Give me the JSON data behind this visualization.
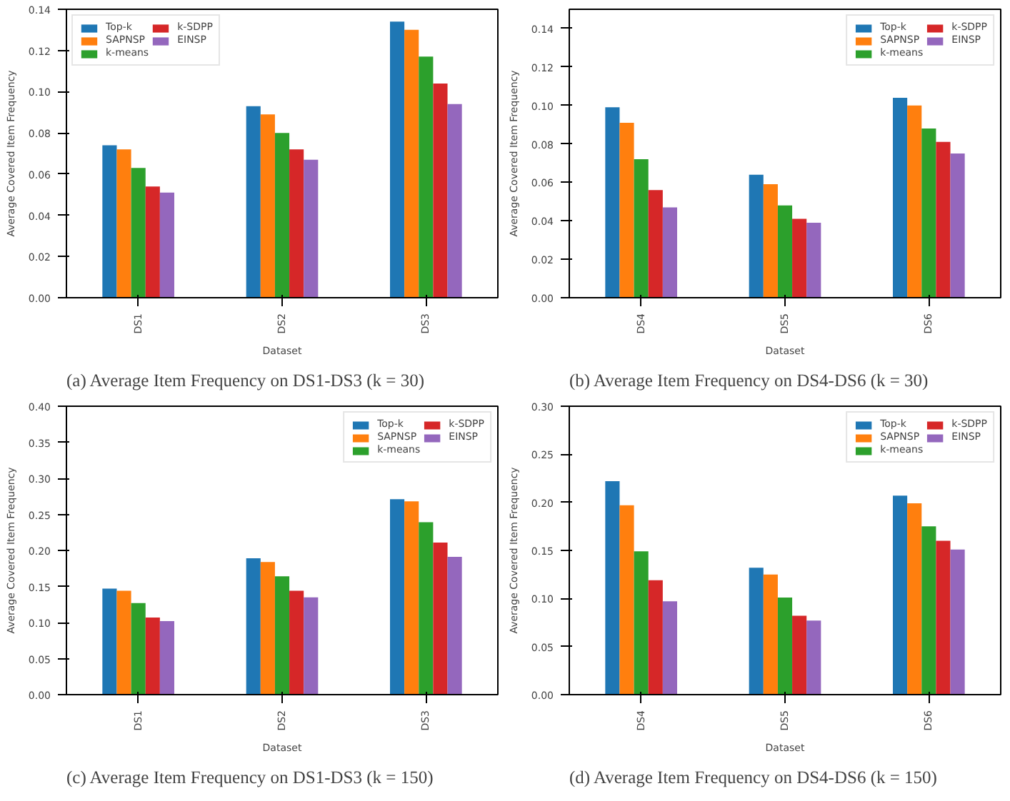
{
  "chart_data": [
    {
      "type": "bar",
      "title": "(a) Average Item Frequency on DS1-DS3 (k = 30)",
      "xlabel": "Dataset",
      "ylabel": "Average Covered Item Frequency",
      "categories": [
        "DS1",
        "DS2",
        "DS3"
      ],
      "ylim": [
        0,
        0.14
      ],
      "yticks": [
        {
          "value": 0,
          "label": "0.00"
        },
        {
          "value": 0.02,
          "label": "0.02"
        },
        {
          "value": 0.04,
          "label": "0.04"
        },
        {
          "value": 0.06,
          "label": "0.06"
        },
        {
          "value": 0.08,
          "label": "0.08"
        },
        {
          "value": 0.1,
          "label": "0.10"
        },
        {
          "value": 0.12,
          "label": "0.12"
        },
        {
          "value": 0.14,
          "label": "0.14"
        }
      ],
      "legend": "top left",
      "series": [
        {
          "name": "Top-k",
          "color": "#1f77b4",
          "values": [
            0.074,
            0.093,
            0.134
          ]
        },
        {
          "name": "SAPNSP",
          "color": "#ff7f0e",
          "values": [
            0.072,
            0.089,
            0.13
          ]
        },
        {
          "name": "k-means",
          "color": "#2ca02c",
          "values": [
            0.063,
            0.08,
            0.117
          ]
        },
        {
          "name": "k-SDPP",
          "color": "#d62728",
          "values": [
            0.054,
            0.072,
            0.104
          ]
        },
        {
          "name": "EINSP",
          "color": "#9467bd",
          "values": [
            0.051,
            0.067,
            0.094
          ]
        }
      ]
    },
    {
      "type": "bar",
      "title": "(b) Average Item Frequency on DS4-DS6 (k = 30)",
      "xlabel": "Dataset",
      "ylabel": "Average Covered Item Frequency",
      "categories": [
        "DS4",
        "DS5",
        "DS6"
      ],
      "ylim": [
        0,
        0.15
      ],
      "yticks": [
        {
          "value": 0,
          "label": "0.00"
        },
        {
          "value": 0.02,
          "label": "0.02"
        },
        {
          "value": 0.04,
          "label": "0.04"
        },
        {
          "value": 0.06,
          "label": "0.06"
        },
        {
          "value": 0.08,
          "label": "0.08"
        },
        {
          "value": 0.1,
          "label": "0.10"
        },
        {
          "value": 0.12,
          "label": "0.12"
        },
        {
          "value": 0.14,
          "label": "0.14"
        }
      ],
      "legend": "top right",
      "series": [
        {
          "name": "Top-k",
          "color": "#1f77b4",
          "values": [
            0.099,
            0.064,
            0.104
          ]
        },
        {
          "name": "SAPNSP",
          "color": "#ff7f0e",
          "values": [
            0.091,
            0.059,
            0.1
          ]
        },
        {
          "name": "k-means",
          "color": "#2ca02c",
          "values": [
            0.072,
            0.048,
            0.088
          ]
        },
        {
          "name": "k-SDPP",
          "color": "#d62728",
          "values": [
            0.056,
            0.041,
            0.081
          ]
        },
        {
          "name": "EINSP",
          "color": "#9467bd",
          "values": [
            0.047,
            0.039,
            0.075
          ]
        }
      ]
    },
    {
      "type": "bar",
      "title": "(c) Average Item Frequency on DS1-DS3 (k = 150)",
      "xlabel": "Dataset",
      "ylabel": "Average Covered Item Frequency",
      "categories": [
        "DS1",
        "DS2",
        "DS3"
      ],
      "ylim": [
        0,
        0.4
      ],
      "yticks": [
        {
          "value": 0,
          "label": "0.00"
        },
        {
          "value": 0.05,
          "label": "0.05"
        },
        {
          "value": 0.1,
          "label": "0.10"
        },
        {
          "value": 0.15,
          "label": "0.15"
        },
        {
          "value": 0.2,
          "label": "0.20"
        },
        {
          "value": 0.25,
          "label": "0.25"
        },
        {
          "value": 0.3,
          "label": "0.30"
        },
        {
          "value": 0.35,
          "label": "0.35"
        },
        {
          "value": 0.4,
          "label": "0.40"
        }
      ],
      "legend": "top right",
      "series": [
        {
          "name": "Top-k",
          "color": "#1f77b4",
          "values": [
            0.147,
            0.189,
            0.271
          ]
        },
        {
          "name": "SAPNSP",
          "color": "#ff7f0e",
          "values": [
            0.144,
            0.184,
            0.268
          ]
        },
        {
          "name": "k-means",
          "color": "#2ca02c",
          "values": [
            0.127,
            0.164,
            0.239
          ]
        },
        {
          "name": "k-SDPP",
          "color": "#d62728",
          "values": [
            0.107,
            0.144,
            0.211
          ]
        },
        {
          "name": "EINSP",
          "color": "#9467bd",
          "values": [
            0.102,
            0.135,
            0.191
          ]
        }
      ]
    },
    {
      "type": "bar",
      "title": "(d) Average Item Frequency on DS4-DS6 (k = 150)",
      "xlabel": "Dataset",
      "ylabel": "Average Covered Item Frequency",
      "categories": [
        "DS4",
        "DS5",
        "DS6"
      ],
      "ylim": [
        0,
        0.3
      ],
      "yticks": [
        {
          "value": 0,
          "label": "0.00"
        },
        {
          "value": 0.05,
          "label": "0.05"
        },
        {
          "value": 0.1,
          "label": "0.10"
        },
        {
          "value": 0.15,
          "label": "0.15"
        },
        {
          "value": 0.2,
          "label": "0.20"
        },
        {
          "value": 0.25,
          "label": "0.25"
        },
        {
          "value": 0.3,
          "label": "0.30"
        }
      ],
      "legend": "top right",
      "series": [
        {
          "name": "Top-k",
          "color": "#1f77b4",
          "values": [
            0.222,
            0.132,
            0.207
          ]
        },
        {
          "name": "SAPNSP",
          "color": "#ff7f0e",
          "values": [
            0.197,
            0.125,
            0.199
          ]
        },
        {
          "name": "k-means",
          "color": "#2ca02c",
          "values": [
            0.149,
            0.101,
            0.175
          ]
        },
        {
          "name": "k-SDPP",
          "color": "#d62728",
          "values": [
            0.119,
            0.082,
            0.16
          ]
        },
        {
          "name": "EINSP",
          "color": "#9467bd",
          "values": [
            0.097,
            0.077,
            0.151
          ]
        }
      ]
    }
  ]
}
